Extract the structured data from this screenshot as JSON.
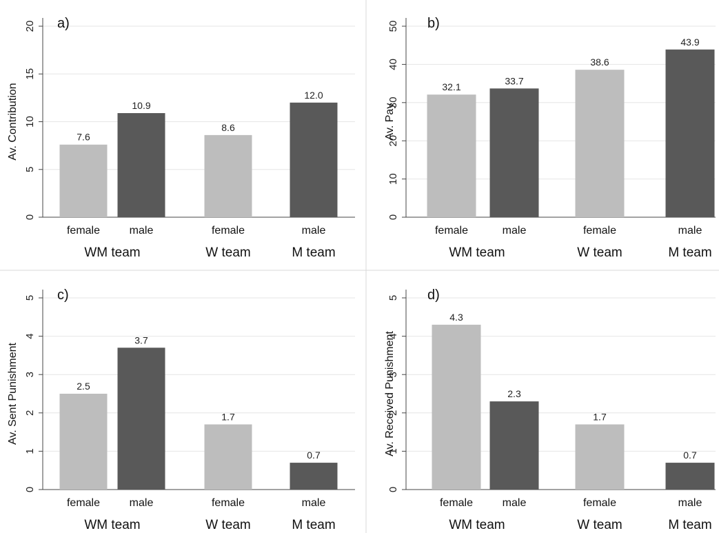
{
  "chart_data": [
    {
      "type": "bar",
      "panel_label": "a)",
      "ylabel": "Av. Contribution",
      "ylim": [
        0,
        20
      ],
      "yticks": [
        0,
        5,
        10,
        15,
        20
      ],
      "grid": true,
      "bars": [
        {
          "category": "female",
          "group": "WM team",
          "value": 7.6,
          "label": "7.6",
          "shade": "light"
        },
        {
          "category": "male",
          "group": "WM team",
          "value": 10.9,
          "label": "10.9",
          "shade": "dark"
        },
        {
          "category": "female",
          "group": "W team",
          "value": 8.6,
          "label": "8.6",
          "shade": "light"
        },
        {
          "category": "male",
          "group": "M team",
          "value": 12.0,
          "label": "12.0",
          "shade": "dark"
        }
      ],
      "groups": [
        "WM team",
        "W team",
        "M team"
      ]
    },
    {
      "type": "bar",
      "panel_label": "b)",
      "ylabel": "Av. Pay",
      "ylim": [
        0,
        50
      ],
      "yticks": [
        0,
        10,
        20,
        30,
        40,
        50
      ],
      "grid": true,
      "bars": [
        {
          "category": "female",
          "group": "WM team",
          "value": 32.1,
          "label": "32.1",
          "shade": "light"
        },
        {
          "category": "male",
          "group": "WM team",
          "value": 33.7,
          "label": "33.7",
          "shade": "dark"
        },
        {
          "category": "female",
          "group": "W team",
          "value": 38.6,
          "label": "38.6",
          "shade": "light"
        },
        {
          "category": "male",
          "group": "M team",
          "value": 43.9,
          "label": "43.9",
          "shade": "dark"
        }
      ],
      "groups": [
        "WM team",
        "W team",
        "M team"
      ]
    },
    {
      "type": "bar",
      "panel_label": "c)",
      "ylabel": "Av. Sent Punishment",
      "ylim": [
        0,
        5
      ],
      "yticks": [
        0,
        1,
        2,
        3,
        4,
        5
      ],
      "grid": true,
      "bars": [
        {
          "category": "female",
          "group": "WM team",
          "value": 2.5,
          "label": "2.5",
          "shade": "light"
        },
        {
          "category": "male",
          "group": "WM team",
          "value": 3.7,
          "label": "3.7",
          "shade": "dark"
        },
        {
          "category": "female",
          "group": "W team",
          "value": 1.7,
          "label": "1.7",
          "shade": "light"
        },
        {
          "category": "male",
          "group": "M team",
          "value": 0.7,
          "label": "0.7",
          "shade": "dark"
        }
      ],
      "groups": [
        "WM team",
        "W team",
        "M team"
      ]
    },
    {
      "type": "bar",
      "panel_label": "d)",
      "ylabel": "Av. Received Punishment",
      "ylim": [
        0,
        5
      ],
      "yticks": [
        0,
        1,
        2,
        3,
        4,
        5
      ],
      "grid": true,
      "bars": [
        {
          "category": "female",
          "group": "WM team",
          "value": 4.3,
          "label": "4.3",
          "shade": "light"
        },
        {
          "category": "male",
          "group": "WM team",
          "value": 2.3,
          "label": "2.3",
          "shade": "dark"
        },
        {
          "category": "female",
          "group": "W team",
          "value": 1.7,
          "label": "1.7",
          "shade": "light"
        },
        {
          "category": "male",
          "group": "M team",
          "value": 0.7,
          "label": "0.7",
          "shade": "dark"
        }
      ],
      "groups": [
        "WM team",
        "W team",
        "M team"
      ]
    }
  ],
  "colors": {
    "light": "#bdbdbd",
    "dark": "#595959",
    "grid": "#e6e6e6",
    "axis": "#444444",
    "divider": "#d9d9d9"
  }
}
